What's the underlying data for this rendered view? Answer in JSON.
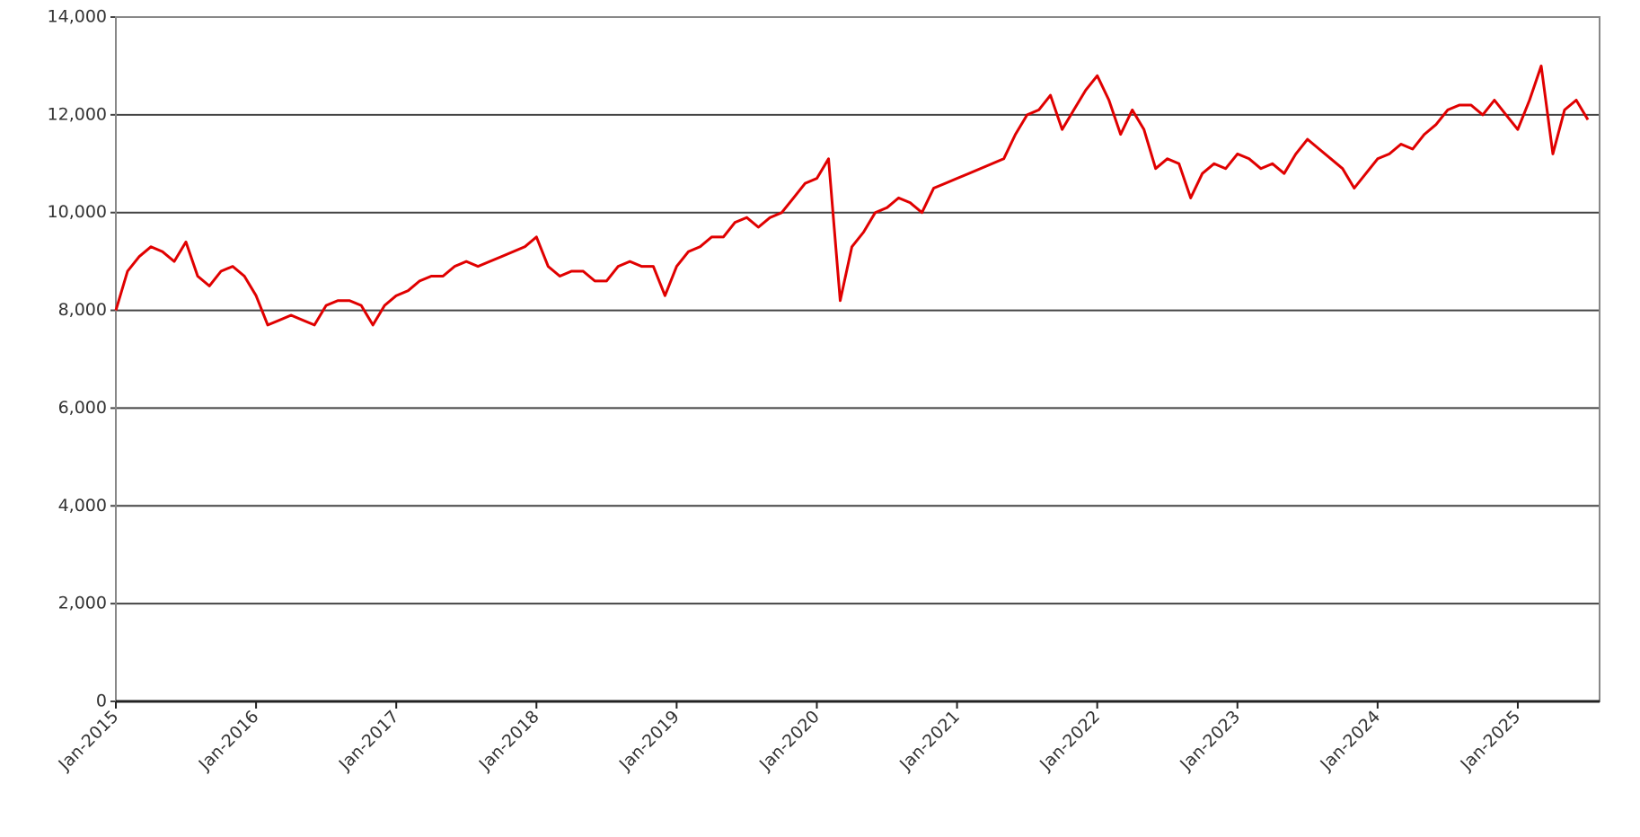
{
  "chart_data": {
    "type": "line",
    "color": "#e00000",
    "grid": true,
    "x": [
      "2015-01",
      "2015-02",
      "2015-03",
      "2015-04",
      "2015-05",
      "2015-06",
      "2015-07",
      "2015-08",
      "2015-09",
      "2015-10",
      "2015-11",
      "2015-12",
      "2016-01",
      "2016-02",
      "2016-03",
      "2016-04",
      "2016-05",
      "2016-06",
      "2016-07",
      "2016-08",
      "2016-09",
      "2016-10",
      "2016-11",
      "2016-12",
      "2017-01",
      "2017-02",
      "2017-03",
      "2017-04",
      "2017-05",
      "2017-06",
      "2017-07",
      "2017-08",
      "2017-09",
      "2017-10",
      "2017-11",
      "2017-12",
      "2018-01",
      "2018-02",
      "2018-03",
      "2018-04",
      "2018-05",
      "2018-06",
      "2018-07",
      "2018-08",
      "2018-09",
      "2018-10",
      "2018-11",
      "2018-12",
      "2019-01",
      "2019-02",
      "2019-03",
      "2019-04",
      "2019-05",
      "2019-06",
      "2019-07",
      "2019-08",
      "2019-09",
      "2019-10",
      "2019-11",
      "2019-12",
      "2020-01",
      "2020-02",
      "2020-03",
      "2020-04",
      "2020-05",
      "2020-06",
      "2020-07",
      "2020-08",
      "2020-09",
      "2020-10",
      "2020-11",
      "2020-12",
      "2021-01",
      "2021-02",
      "2021-03",
      "2021-04",
      "2021-05",
      "2021-06",
      "2021-07",
      "2021-08",
      "2021-09",
      "2021-10",
      "2021-11",
      "2021-12",
      "2022-01",
      "2022-02",
      "2022-03",
      "2022-04",
      "2022-05",
      "2022-06",
      "2022-07",
      "2022-08",
      "2022-09",
      "2022-10",
      "2022-11",
      "2022-12",
      "2023-01",
      "2023-02",
      "2023-03",
      "2023-04",
      "2023-05",
      "2023-06",
      "2023-07",
      "2023-08",
      "2023-09",
      "2023-10",
      "2023-11",
      "2023-12",
      "2024-01",
      "2024-02",
      "2024-03",
      "2024-04",
      "2024-05",
      "2024-06",
      "2024-07",
      "2024-08",
      "2024-09",
      "2024-10",
      "2024-11",
      "2024-12",
      "2025-01",
      "2025-02",
      "2025-03",
      "2025-04",
      "2025-05",
      "2025-06",
      "2025-07"
    ],
    "values": [
      8000,
      8800,
      9100,
      9300,
      9200,
      9000,
      9400,
      8700,
      8500,
      8800,
      8900,
      8700,
      8300,
      7700,
      7800,
      7900,
      7800,
      7700,
      8100,
      8200,
      8200,
      8100,
      7700,
      8100,
      8300,
      8400,
      8600,
      8700,
      8700,
      8900,
      9000,
      8900,
      9000,
      9100,
      9200,
      9300,
      9500,
      8900,
      8700,
      8800,
      8800,
      8600,
      8600,
      8900,
      9000,
      8900,
      8900,
      8300,
      8900,
      9200,
      9300,
      9500,
      9500,
      9800,
      9900,
      9700,
      9900,
      10000,
      10300,
      10600,
      10700,
      11100,
      8200,
      9300,
      9600,
      10000,
      10100,
      10300,
      10200,
      10000,
      10500,
      10600,
      10700,
      10800,
      10900,
      11000,
      11100,
      11600,
      12000,
      12100,
      12400,
      11700,
      12100,
      12500,
      12800,
      12300,
      11600,
      12100,
      11700,
      10900,
      11100,
      11000,
      10300,
      10800,
      11000,
      10900,
      11200,
      11100,
      10900,
      11000,
      10800,
      11200,
      11500,
      11300,
      11100,
      10900,
      10500,
      10800,
      11100,
      11200,
      11400,
      11300,
      11600,
      11800,
      12100,
      12200,
      12200,
      12000,
      12300,
      12000,
      11700,
      12300,
      13000,
      11200,
      12100,
      12300,
      11900
    ],
    "xlim": [
      "2015-01",
      "2025-08"
    ],
    "xticks": [
      {
        "value": "2015-01",
        "label": "Jan-2015"
      },
      {
        "value": "2016-01",
        "label": "Jan-2016"
      },
      {
        "value": "2017-01",
        "label": "Jan-2017"
      },
      {
        "value": "2018-01",
        "label": "Jan-2018"
      },
      {
        "value": "2019-01",
        "label": "Jan-2019"
      },
      {
        "value": "2020-01",
        "label": "Jan-2020"
      },
      {
        "value": "2021-01",
        "label": "Jan-2021"
      },
      {
        "value": "2022-01",
        "label": "Jan-2022"
      },
      {
        "value": "2023-01",
        "label": "Jan-2023"
      },
      {
        "value": "2024-01",
        "label": "Jan-2024"
      },
      {
        "value": "2025-01",
        "label": "Jan-2025"
      }
    ],
    "ylim": [
      0,
      14000
    ],
    "yticks": [
      0,
      {
        "value": 2000,
        "label": "2,000"
      },
      {
        "value": 4000,
        "label": "4,000"
      },
      {
        "value": 6000,
        "label": "6,000"
      },
      {
        "value": 8000,
        "label": "8,000"
      },
      {
        "value": 10000,
        "label": "10,000"
      },
      {
        "value": 12000,
        "label": "12,000"
      },
      {
        "value": 14000,
        "label": "14,000"
      }
    ]
  }
}
